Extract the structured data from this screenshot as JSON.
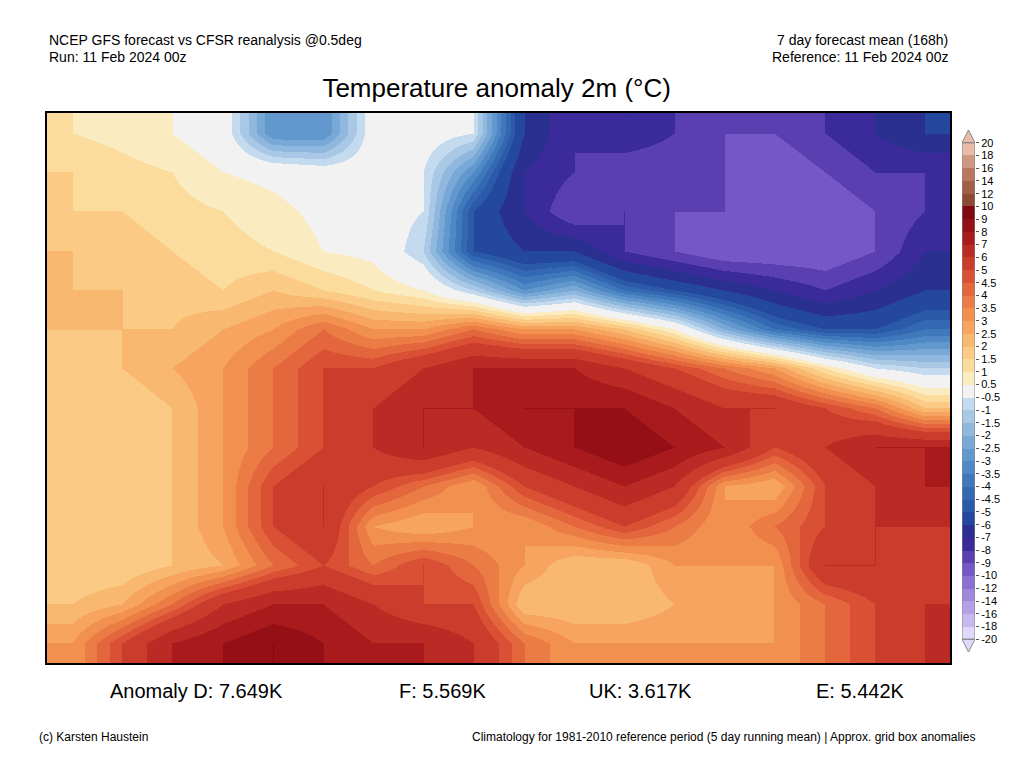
{
  "chart_data": {
    "type": "heatmap",
    "title": "Temperature anomaly 2m (°C)",
    "annotations": {
      "source": [
        "NCEP GFS forecast vs CFSR reanalysis @0.5deg",
        "Run: 11 Feb 2024 00z"
      ],
      "run_info": [
        "7 day forecast mean (168h)",
        "Reference: 11 Feb 2024 00z"
      ],
      "stats": [
        "Anomaly D: 7.649K",
        "F: 5.569K",
        "UK: 3.617K",
        "E: 5.442K"
      ],
      "credit": "(c) Karsten Haustein",
      "note": "Climatology for 1981-2010 reference period (5 day running mean) | Approx. grid box anomalies"
    },
    "x": [
      -24,
      -20,
      -16,
      -12,
      -8,
      -4,
      0,
      4,
      8,
      12,
      16,
      20,
      24,
      28,
      32,
      36,
      40,
      44
    ],
    "y": [
      31,
      34,
      37,
      40,
      43,
      46,
      49,
      52,
      55,
      58,
      61,
      64,
      67,
      70
    ],
    "z": [
      [
        3,
        5,
        7,
        8,
        9,
        8,
        7,
        7,
        6,
        4,
        3,
        3,
        3,
        3,
        3,
        4,
        5,
        6
      ],
      [
        2,
        2.5,
        4,
        6,
        7,
        7,
        6,
        5,
        5,
        2,
        2,
        2,
        2.5,
        2.5,
        3,
        4,
        5,
        6
      ],
      [
        1.5,
        1.5,
        2,
        2.5,
        4,
        5,
        4,
        5,
        4,
        3,
        2,
        2,
        3,
        3,
        3,
        6,
        6,
        5
      ],
      [
        1.5,
        1.5,
        2,
        3,
        5,
        6,
        3,
        2.5,
        3,
        3,
        4,
        5,
        4,
        3,
        4,
        5,
        6,
        6
      ],
      [
        1.5,
        1.5,
        2,
        3,
        5,
        6,
        5,
        4,
        3,
        5,
        6,
        7,
        6,
        3,
        2.5,
        5,
        6,
        7
      ],
      [
        1.5,
        1.5,
        2,
        3,
        4,
        5,
        6,
        7,
        6,
        7,
        8,
        9,
        8,
        7,
        5,
        6,
        7,
        7
      ],
      [
        1.5,
        1.5,
        2,
        3,
        4,
        5,
        6,
        7,
        7,
        8,
        8,
        8,
        7,
        6,
        6,
        5,
        4,
        2
      ],
      [
        1.5,
        2,
        2.5,
        3,
        4,
        5,
        5,
        6,
        7,
        7,
        7,
        6,
        5,
        4,
        3,
        1,
        -0.5,
        -1
      ],
      [
        2,
        2,
        2,
        2.5,
        3,
        4,
        3,
        3,
        4,
        3,
        3,
        2,
        0.5,
        -2,
        -4,
        -5,
        -5,
        -4
      ],
      [
        2,
        2,
        1.8,
        1.5,
        2,
        1.5,
        1,
        0.5,
        -1,
        -3,
        -2,
        -4,
        -5,
        -6,
        -7,
        -8,
        -7,
        -6
      ],
      [
        2,
        1.8,
        1.5,
        1.2,
        1,
        0.5,
        0.3,
        -1,
        -5,
        -6,
        -6,
        -8,
        -9,
        -10,
        -10,
        -10,
        -9,
        -7
      ],
      [
        1.5,
        1.5,
        1.2,
        1,
        0.7,
        0.3,
        0,
        -0.5,
        -5,
        -7,
        -9,
        -8,
        -9,
        -9,
        -10,
        -10,
        -9,
        -8
      ],
      [
        1.5,
        1.2,
        1,
        0.5,
        0.3,
        0,
        0,
        -0.5,
        -3,
        -7,
        -8,
        -9,
        -9,
        -9,
        -10,
        -9,
        -8,
        -8
      ],
      [
        1,
        0.8,
        0.5,
        0,
        -3,
        -3,
        0,
        0,
        -0.5,
        -6,
        -8,
        -7,
        -8,
        -9,
        -9,
        -8,
        -7,
        -6
      ]
    ],
    "xlim": [
      -26,
      46
    ],
    "ylim": [
      29.5,
      71.5
    ],
    "tick_labels": false,
    "grid": false,
    "colorbar": {
      "levels": [
        -20,
        -18,
        -16,
        -14,
        -12,
        -10,
        -9,
        -8,
        -7,
        -6,
        -5,
        -4.5,
        -4,
        -3.5,
        -3,
        -2.5,
        -2,
        -1.5,
        -1,
        -0.5,
        0.5,
        1,
        1.5,
        2,
        2.5,
        3,
        3.5,
        4,
        4.5,
        5,
        6,
        7,
        8,
        9,
        10,
        12,
        14,
        16,
        18,
        20
      ],
      "colors": [
        "#e0d8fa",
        "#c8b8f0",
        "#b3a0e6",
        "#9e88dc",
        "#8a70d2",
        "#7558c6",
        "#5a3fb0",
        "#3a2a9a",
        "#2a3090",
        "#24489e",
        "#2a5aa8",
        "#3468b2",
        "#4078bc",
        "#5088c6",
        "#6298ce",
        "#78a8d6",
        "#90b8de",
        "#a8c8e6",
        "#c4daee",
        "#f2f2f2",
        "#fbebc0",
        "#fbdc9c",
        "#fbca84",
        "#f9b870",
        "#f6a460",
        "#f29050",
        "#ec7c46",
        "#e4663c",
        "#da5034",
        "#cc3c2c",
        "#bb2a24",
        "#a81a1c",
        "#941016",
        "#7c0a10",
        "#8a4a34",
        "#a06048",
        "#b87860",
        "#d09880",
        "#e8bca8"
      ]
    }
  }
}
